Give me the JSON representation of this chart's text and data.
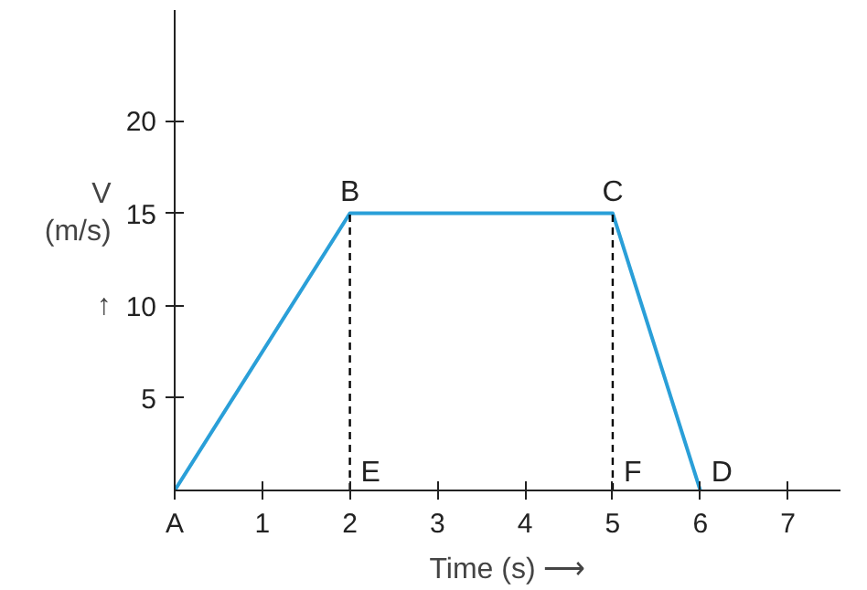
{
  "chart_data": {
    "type": "line",
    "xlabel": "Time (s) ⟶",
    "ylabel": "V\n(m/s)\n\n↑",
    "series": [
      {
        "color": "#2a9fd8",
        "x": [
          0,
          2,
          5,
          6
        ],
        "values": [
          0,
          15,
          15,
          0
        ]
      },
      {
        "color": "#000000",
        "x": [
          2,
          2
        ],
        "values": [
          0,
          15
        ],
        "line_style": "dashed"
      },
      {
        "color": "#000000",
        "x": [
          5,
          5
        ],
        "values": [
          0,
          15
        ],
        "line_style": "dashed"
      }
    ],
    "xlim": [
      0,
      7.6
    ],
    "xticks": [
      {
        "value": 0,
        "label": "A"
      },
      1,
      2,
      3,
      4,
      5,
      6,
      7
    ],
    "ylim": [
      0,
      26
    ],
    "yticks": [
      5,
      10,
      15,
      20
    ],
    "grid": false,
    "marker": "none",
    "annotations": [
      {
        "text": "B",
        "x": 2,
        "y": 15
      },
      {
        "text": "C",
        "x": 5,
        "y": 15
      },
      {
        "text": "D",
        "x": 6,
        "y": 0
      },
      {
        "text": "E",
        "x": 2,
        "y": 0
      },
      {
        "text": "F",
        "x": 5,
        "y": 0
      }
    ]
  }
}
